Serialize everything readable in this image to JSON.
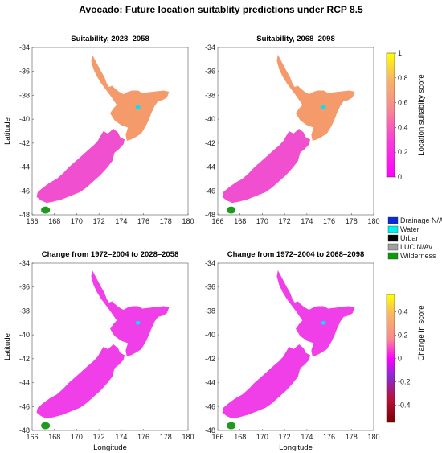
{
  "title": "Avocado: Future location suitablity predictions under RCP 8.5",
  "panels": [
    {
      "title": "Suitability, 2028–2058",
      "kind": "suitability",
      "show_ylabel": true,
      "show_xlabel": false
    },
    {
      "title": "Suitability, 2068–2098",
      "kind": "suitability",
      "show_ylabel": false,
      "show_xlabel": false
    },
    {
      "title": "Change from 1972–2004 to 2028–2058",
      "kind": "change_a",
      "show_ylabel": true,
      "show_xlabel": true
    },
    {
      "title": "Change from 1972–2004 to 2068–2098",
      "kind": "change_b",
      "show_ylabel": false,
      "show_xlabel": true
    }
  ],
  "axes": {
    "xlabel": "Longitude",
    "ylabel": "Latitude",
    "xlim": [
      166,
      180
    ],
    "ylim": [
      -48,
      -34
    ],
    "xticks": [
      "166",
      "168",
      "170",
      "172",
      "174",
      "176",
      "178",
      "180"
    ],
    "yticks": [
      "-34",
      "-36",
      "-38",
      "-40",
      "-42",
      "-44",
      "-46",
      "-48"
    ]
  },
  "colorbar_suitability": {
    "label": "Location suitablity score",
    "range": [
      0,
      1
    ],
    "ticks": [
      "1",
      "0.8",
      "0.6",
      "0.4",
      "0.2",
      "0"
    ]
  },
  "colorbar_change": {
    "label": "Change in score",
    "range": [
      -0.55,
      0.55
    ],
    "ticks": [
      "0.4",
      "0.2",
      "0",
      "-0.2",
      "-0.4"
    ]
  },
  "legend": [
    {
      "label": "Drainage N/Av",
      "color": "#0a2ad8"
    },
    {
      "label": "Water",
      "color": "#00f0f0"
    },
    {
      "label": "Urban",
      "color": "#000000"
    },
    {
      "label": "LUC N/Av",
      "color": "#a0a0a0"
    },
    {
      "label": "Wilderness",
      "color": "#0a9a0a"
    }
  ],
  "colors": {
    "wilderness": "#1f9a1f",
    "suit_high": "#f3c34a",
    "suit_mid": "#f59a6a",
    "suit_low": "#f04fd0",
    "change_pos": "#f2a04a",
    "change_zero": "#f03fe8"
  }
}
